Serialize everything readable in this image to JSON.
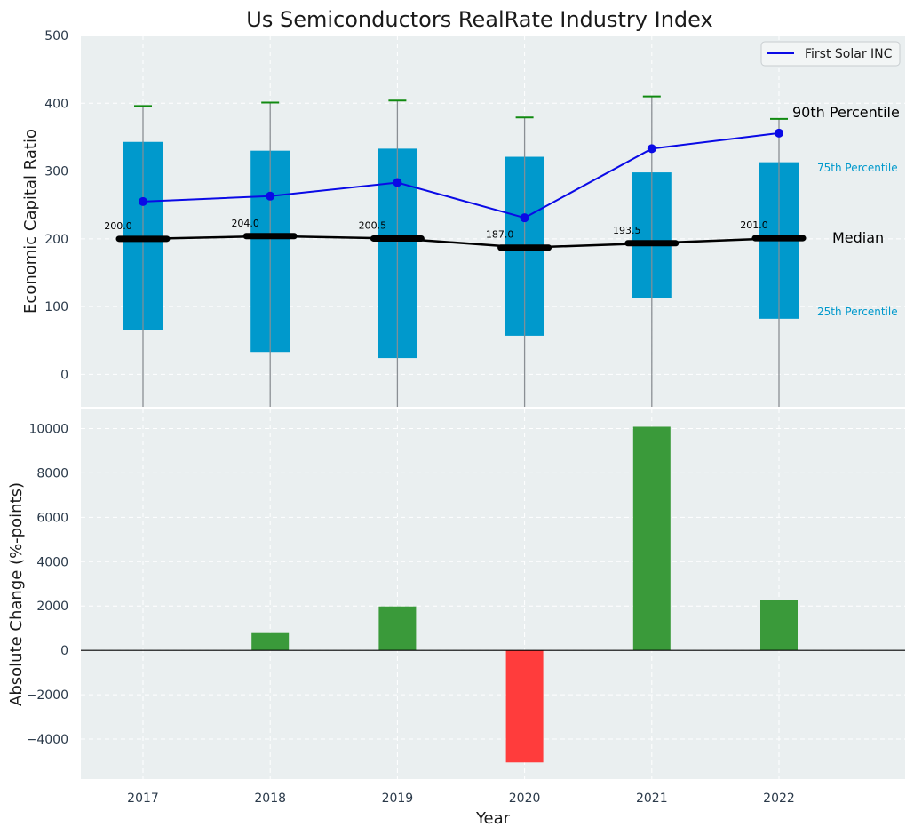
{
  "chart_data": [
    {
      "type": "box",
      "title": "Us Semiconductors RealRate Industry Index",
      "ylabel": "Economic Capital Ratio",
      "xlabel": "",
      "ylim": [
        -48,
        500
      ],
      "yticks": [
        0,
        100,
        200,
        300,
        400,
        500
      ],
      "categories": [
        "2017",
        "2018",
        "2019",
        "2020",
        "2021",
        "2022"
      ],
      "p25": [
        65,
        33,
        24,
        57,
        113,
        82
      ],
      "p75": [
        343,
        330,
        333,
        321,
        298,
        313
      ],
      "median": [
        200.0,
        204.0,
        200.5,
        187.0,
        193.5,
        201.0
      ],
      "median_labels": [
        "200.0",
        "204.0",
        "200.5",
        "187.0",
        "193.5",
        "201.0"
      ],
      "p90": [
        396,
        401,
        404,
        379,
        410,
        377
      ],
      "series": [
        {
          "name": "First Solar INC",
          "values": [
            255,
            263,
            283,
            231,
            333,
            356
          ]
        }
      ],
      "annotations": {
        "p90": "90th Percentile",
        "p75": "75th Percentile",
        "median": "Median",
        "p25": "25th Percentile"
      },
      "legend_position": "top-right",
      "grid": true,
      "colors": {
        "box": "#0099cc",
        "company": "#0a0ae6",
        "median": "#000000",
        "cap": "#108a10"
      }
    },
    {
      "type": "bar",
      "title": "",
      "xlabel": "Year",
      "ylabel": "Absolute Change (%-points)",
      "ylim": [
        -5800,
        10900
      ],
      "yticks": [
        -4000,
        -2000,
        0,
        2000,
        4000,
        6000,
        8000,
        10000
      ],
      "ytick_labels": [
        "−4000",
        "−2000",
        "0",
        "2000",
        "4000",
        "6000",
        "8000",
        "10000"
      ],
      "categories": [
        "2017",
        "2018",
        "2019",
        "2020",
        "2021",
        "2022"
      ],
      "values": [
        0,
        780,
        1980,
        -5050,
        10080,
        2280
      ],
      "grid": true,
      "colors": {
        "positive": "#3a9a3a",
        "negative": "#ff3c3c"
      }
    }
  ]
}
